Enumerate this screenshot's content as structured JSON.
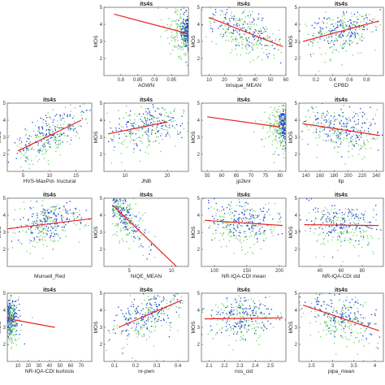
{
  "figure": {
    "colors": {
      "blue": "#1f3dd6",
      "green": "#6fd36a",
      "fit": "#e8231f",
      "axis": "#555555"
    }
  },
  "chart_data": [
    {
      "type": "scatter",
      "title": "its4s",
      "xlabel": "AGWN",
      "ylabel": "MOS",
      "xlim": [
        0.75,
        1.0
      ],
      "ylim": [
        1,
        5
      ],
      "xticks": [
        0.8,
        0.85,
        0.9,
        0.95
      ],
      "yticks": [
        2,
        3,
        4,
        5
      ],
      "fit": {
        "x": [
          0.78,
          0.99
        ],
        "y": [
          4.6,
          3.5
        ]
      }
    },
    {
      "type": "scatter",
      "title": "its4s",
      "xlabel": "brisque_MEAN",
      "ylabel": "MOS",
      "xlim": [
        5,
        60
      ],
      "ylim": [
        1,
        5
      ],
      "xticks": [
        10,
        20,
        30,
        40,
        50,
        60
      ],
      "yticks": [
        2,
        3,
        4,
        5
      ],
      "fit": {
        "x": [
          10,
          58
        ],
        "y": [
          4.4,
          2.7
        ]
      }
    },
    {
      "type": "scatter",
      "title": "its4s",
      "xlabel": "CPBD",
      "ylabel": "MOS",
      "xlim": [
        0,
        1
      ],
      "ylim": [
        1,
        5
      ],
      "xticks": [
        0.2,
        0.4,
        0.6,
        0.8
      ],
      "yticks": [
        2,
        3,
        4,
        5
      ],
      "fit": {
        "x": [
          0.05,
          0.95
        ],
        "y": [
          3.0,
          4.2
        ]
      }
    },
    {
      "type": "scatter",
      "title": "its4s",
      "xlabel": "HVS-MaxPol- tructural",
      "ylabel": "MOS",
      "xlim": [
        2,
        18
      ],
      "ylim": [
        1,
        5
      ],
      "xticks": [
        5,
        10,
        15
      ],
      "yticks": [
        2,
        3,
        4,
        5
      ],
      "fit": {
        "x": [
          4,
          16
        ],
        "y": [
          2.2,
          4.0
        ]
      }
    },
    {
      "type": "scatter",
      "title": "its4s",
      "xlabel": "JNB",
      "ylabel": "MOS",
      "xlim": [
        5,
        25
      ],
      "ylim": [
        1,
        5
      ],
      "xticks": [
        10,
        20
      ],
      "yticks": [
        2,
        3,
        4,
        5
      ],
      "fit": {
        "x": [
          6,
          20
        ],
        "y": [
          3.2,
          3.9
        ]
      }
    },
    {
      "type": "scatter",
      "title": "its4s",
      "xlabel": "jp2knr",
      "ylabel": "MOS",
      "xlim": [
        53,
        82
      ],
      "ylim": [
        1,
        5
      ],
      "xticks": [
        55,
        60,
        65,
        70,
        75,
        80
      ],
      "yticks": [
        2,
        3,
        4,
        5
      ],
      "fit": {
        "x": [
          55,
          80
        ],
        "y": [
          4.2,
          3.6
        ]
      }
    },
    {
      "type": "scatter",
      "title": "its4s",
      "xlabel": "llp",
      "ylabel": "MOS",
      "xlim": [
        130,
        250
      ],
      "ylim": [
        1,
        5
      ],
      "xticks": [
        140,
        160,
        180,
        200,
        220,
        240
      ],
      "yticks": [
        2,
        3,
        4,
        5
      ],
      "fit": {
        "x": [
          135,
          245
        ],
        "y": [
          3.8,
          3.1
        ]
      }
    },
    {
      "type": "scatter",
      "title": "its4s",
      "xlabel": "Munsell_Red",
      "ylabel": "MOS",
      "xlim": [
        0,
        100
      ],
      "ylim": [
        1,
        5
      ],
      "xticks": [],
      "yticks": [
        2,
        3,
        4,
        5
      ],
      "fit": {
        "x": [
          0,
          100
        ],
        "y": [
          3.2,
          3.8
        ]
      }
    },
    {
      "type": "scatter",
      "title": "its4s",
      "xlabel": "NIQE_MEAN",
      "ylabel": "MOS",
      "xlim": [
        2,
        12
      ],
      "ylim": [
        1,
        5
      ],
      "xticks": [
        5,
        10
      ],
      "yticks": [
        2,
        3,
        4,
        5
      ],
      "fit": {
        "x": [
          3,
          11
        ],
        "y": [
          4.6,
          0.8
        ]
      }
    },
    {
      "type": "scatter",
      "title": "its4s",
      "xlabel": "NR-IQA-CDI mean",
      "ylabel": "MOS",
      "xlim": [
        80,
        210
      ],
      "ylim": [
        1,
        5
      ],
      "xticks": [
        100,
        150,
        200
      ],
      "yticks": [
        2,
        3,
        4,
        5
      ],
      "fit": {
        "x": [
          85,
          205
        ],
        "y": [
          3.7,
          3.4
        ]
      }
    },
    {
      "type": "scatter",
      "title": "its4s",
      "xlabel": "NR-IQA-CDI std",
      "ylabel": "MOS",
      "xlim": [
        20,
        100
      ],
      "ylim": [
        1,
        5
      ],
      "xticks": [
        40,
        60,
        80
      ],
      "yticks": [
        2,
        3,
        4,
        5
      ],
      "fit": {
        "x": [
          25,
          95
        ],
        "y": [
          3.45,
          3.4
        ]
      }
    },
    {
      "type": "scatter",
      "title": "its4s",
      "xlabel": "NR-IQA-CDI kurtosis",
      "ylabel": "MOS",
      "xlim": [
        0,
        80
      ],
      "ylim": [
        1,
        5
      ],
      "xticks": [
        10,
        20,
        30,
        40,
        50,
        60,
        70
      ],
      "yticks": [
        2,
        3,
        4,
        5
      ],
      "fit": {
        "x": [
          1,
          45
        ],
        "y": [
          3.5,
          3.0
        ]
      }
    },
    {
      "type": "scatter",
      "title": "its4s",
      "xlabel": "nr-pwn",
      "ylabel": "MOS",
      "xlim": [
        0.05,
        0.45
      ],
      "ylim": [
        1,
        5
      ],
      "xticks": [
        0.1,
        0.2,
        0.3,
        0.4
      ],
      "yticks": [
        2,
        3,
        4,
        5
      ],
      "fit": {
        "x": [
          0.12,
          0.42
        ],
        "y": [
          3.0,
          4.6
        ]
      }
    },
    {
      "type": "scatter",
      "title": "its4s",
      "xlabel": "nss_cid",
      "ylabel": "MOS",
      "xlim": [
        2.05,
        2.6
      ],
      "ylim": [
        1,
        5
      ],
      "xticks": [
        2.1,
        2.2,
        2.3,
        2.4,
        2.5
      ],
      "yticks": [
        2,
        3,
        4,
        5
      ],
      "fit": {
        "x": [
          2.07,
          2.58
        ],
        "y": [
          3.5,
          3.55
        ]
      }
    },
    {
      "type": "scatter",
      "title": "its4s",
      "xlabel": "pipa_mean",
      "ylabel": "MOS",
      "xlim": [
        2.2,
        4.2
      ],
      "ylim": [
        1,
        5
      ],
      "xticks": [
        2.5,
        3,
        3.5,
        4
      ],
      "yticks": [
        2,
        3,
        4,
        5
      ],
      "fit": {
        "x": [
          2.3,
          4.1
        ],
        "y": [
          4.3,
          2.8
        ]
      }
    }
  ]
}
